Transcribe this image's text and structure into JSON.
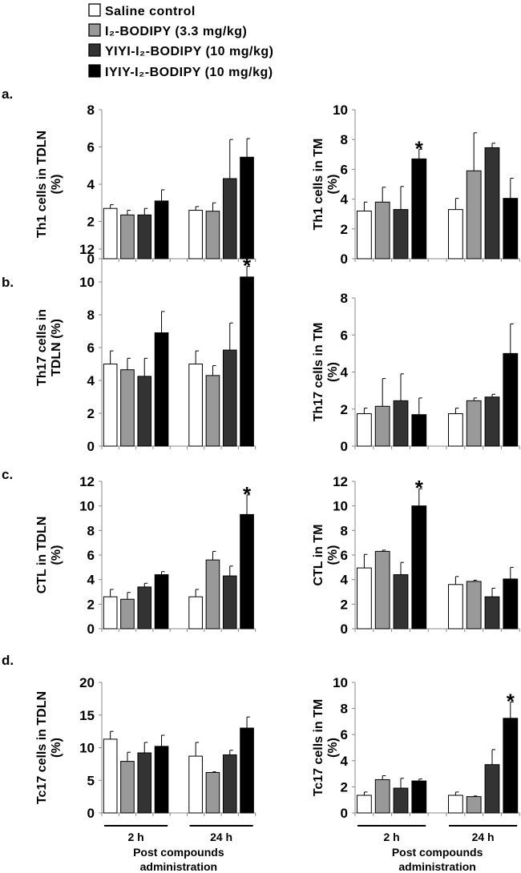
{
  "legend": [
    {
      "label": "Saline control",
      "color": "#ffffff"
    },
    {
      "label": "I₂-BODIPY (3.3 mg/kg)",
      "color": "#999999"
    },
    {
      "label": "YIYI-I₂-BODIPY (10 mg/kg)",
      "color": "#333333"
    },
    {
      "label": "IYIY-I₂-BODIPY (10 mg/kg)",
      "color": "#000000"
    }
  ],
  "chart_data": [
    {
      "type": "bar",
      "panel": "a.",
      "ylabel": [
        "Th1 cells in TDLN",
        "(%)"
      ],
      "ylim": [
        0,
        8
      ],
      "yticks": [
        0,
        2,
        4,
        6,
        8
      ],
      "categories": [
        "2 h",
        "24 h"
      ],
      "series": [
        {
          "values": [
            2.7,
            2.6
          ],
          "err_top": [
            2.9,
            2.8
          ]
        },
        {
          "values": [
            2.35,
            2.55
          ],
          "err_top": [
            2.6,
            3.0
          ]
        },
        {
          "values": [
            2.35,
            4.3
          ],
          "err_top": [
            2.7,
            6.4
          ]
        },
        {
          "values": [
            3.1,
            5.45
          ],
          "err_top": [
            3.7,
            6.45
          ]
        }
      ],
      "stars": []
    },
    {
      "type": "bar",
      "panel": "",
      "ylabel": [
        "Th1 cells in TM",
        "(%)"
      ],
      "ylim": [
        0,
        10
      ],
      "yticks": [
        0,
        2,
        4,
        6,
        8,
        10
      ],
      "categories": [
        "2 h",
        "24 h"
      ],
      "series": [
        {
          "values": [
            3.2,
            3.3
          ],
          "err_top": [
            3.8,
            4.05
          ]
        },
        {
          "values": [
            3.8,
            5.9
          ],
          "err_top": [
            4.8,
            8.45
          ]
        },
        {
          "values": [
            3.3,
            7.45
          ],
          "err_top": [
            4.85,
            7.75
          ]
        },
        {
          "values": [
            6.7,
            4.05
          ],
          "err_top": [
            7.35,
            5.4
          ]
        }
      ],
      "stars": [
        {
          "group": 0,
          "series": 3,
          "label": "*"
        }
      ]
    },
    {
      "type": "bar",
      "panel": "b.",
      "ylabel": [
        "Th17 cells in",
        "TDLN (%)"
      ],
      "ylim": [
        0,
        12
      ],
      "yticks": [
        0,
        2,
        4,
        6,
        8,
        10,
        12
      ],
      "categories": [
        "2 h",
        "24 h"
      ],
      "series": [
        {
          "values": [
            5.0,
            5.0
          ],
          "err_top": [
            5.8,
            5.8
          ]
        },
        {
          "values": [
            4.65,
            4.3
          ],
          "err_top": [
            5.35,
            4.9
          ]
        },
        {
          "values": [
            4.25,
            5.85
          ],
          "err_top": [
            5.35,
            7.5
          ]
        },
        {
          "values": [
            6.9,
            10.3
          ],
          "err_top": [
            8.2,
            10.95
          ]
        }
      ],
      "stars": [
        {
          "group": 1,
          "series": 3,
          "label": "*"
        }
      ]
    },
    {
      "type": "bar",
      "panel": "",
      "ylabel": [
        "Th17 cells in TM",
        "(%)"
      ],
      "ylim": [
        0,
        8
      ],
      "yticks": [
        0,
        2,
        4,
        6,
        8
      ],
      "categories": [
        "2 h",
        "24 h"
      ],
      "series": [
        {
          "values": [
            1.75,
            1.75
          ],
          "err_top": [
            2.05,
            2.05
          ]
        },
        {
          "values": [
            2.15,
            2.45
          ],
          "err_top": [
            3.65,
            2.6
          ]
        },
        {
          "values": [
            2.45,
            2.65
          ],
          "err_top": [
            3.9,
            2.8
          ]
        },
        {
          "values": [
            1.7,
            5.0
          ],
          "err_top": [
            2.6,
            6.6
          ]
        }
      ],
      "stars": []
    },
    {
      "type": "bar",
      "panel": "c.",
      "ylabel": [
        "CTL in TDLN",
        "(%)"
      ],
      "ylim": [
        0,
        12
      ],
      "yticks": [
        0,
        2,
        4,
        6,
        8,
        10,
        12
      ],
      "categories": [
        "2 h",
        "24 h"
      ],
      "series": [
        {
          "values": [
            2.6,
            2.6
          ],
          "err_top": [
            3.2,
            3.2
          ]
        },
        {
          "values": [
            2.4,
            5.6
          ],
          "err_top": [
            2.95,
            6.3
          ]
        },
        {
          "values": [
            3.4,
            4.3
          ],
          "err_top": [
            3.7,
            5.1
          ]
        },
        {
          "values": [
            4.4,
            9.3
          ],
          "err_top": [
            4.65,
            10.9
          ]
        }
      ],
      "stars": [
        {
          "group": 1,
          "series": 3,
          "label": "*"
        }
      ]
    },
    {
      "type": "bar",
      "panel": "",
      "ylabel": [
        "CTL in TM",
        "(%)"
      ],
      "ylim": [
        0,
        12
      ],
      "yticks": [
        0,
        2,
        4,
        6,
        8,
        10,
        12
      ],
      "categories": [
        "2 h",
        "24 h"
      ],
      "series": [
        {
          "values": [
            4.95,
            3.6
          ],
          "err_top": [
            6.05,
            4.25
          ]
        },
        {
          "values": [
            6.3,
            3.85
          ],
          "err_top": [
            6.4,
            3.95
          ]
        },
        {
          "values": [
            4.4,
            2.6
          ],
          "err_top": [
            5.4,
            3.3
          ]
        },
        {
          "values": [
            10.0,
            4.05
          ],
          "err_top": [
            11.4,
            5.0
          ]
        }
      ],
      "stars": [
        {
          "group": 0,
          "series": 3,
          "label": "*"
        }
      ]
    },
    {
      "type": "bar",
      "panel": "d.",
      "ylabel": [
        "Tc17 cells in TDLN",
        "(%)"
      ],
      "ylim": [
        0,
        20
      ],
      "yticks": [
        0,
        5,
        10,
        15,
        20
      ],
      "categories": [
        "2 h",
        "24 h"
      ],
      "series": [
        {
          "values": [
            11.3,
            8.7
          ],
          "err_top": [
            12.5,
            10.8
          ]
        },
        {
          "values": [
            7.9,
            6.2
          ],
          "err_top": [
            9.3,
            6.3
          ]
        },
        {
          "values": [
            9.2,
            8.9
          ],
          "err_top": [
            10.8,
            9.6
          ]
        },
        {
          "values": [
            10.2,
            13.0
          ],
          "err_top": [
            11.9,
            14.7
          ]
        }
      ],
      "stars": [],
      "xlabel": [
        "Post compounds",
        "administration"
      ]
    },
    {
      "type": "bar",
      "panel": "",
      "ylabel": [
        "Tc17 cells in TM",
        "(%)"
      ],
      "ylim": [
        0,
        10
      ],
      "yticks": [
        0,
        2,
        4,
        6,
        8,
        10
      ],
      "categories": [
        "2 h",
        "24 h"
      ],
      "series": [
        {
          "values": [
            1.35,
            1.35
          ],
          "err_top": [
            1.6,
            1.6
          ]
        },
        {
          "values": [
            2.55,
            1.25
          ],
          "err_top": [
            2.85,
            1.3
          ]
        },
        {
          "values": [
            1.9,
            3.7
          ],
          "err_top": [
            2.65,
            4.85
          ]
        },
        {
          "values": [
            2.45,
            7.25
          ],
          "err_top": [
            2.6,
            8.5
          ]
        }
      ],
      "stars": [
        {
          "group": 1,
          "series": 3,
          "label": "*"
        }
      ],
      "xlabel": [
        "Post compounds",
        "administration"
      ]
    }
  ]
}
